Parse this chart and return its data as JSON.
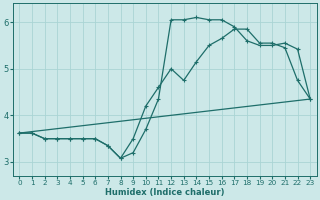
{
  "xlabel": "Humidex (Indice chaleur)",
  "xlim": [
    -0.5,
    23.5
  ],
  "ylim": [
    2.7,
    6.4
  ],
  "yticks": [
    3,
    4,
    5,
    6
  ],
  "xticks": [
    0,
    1,
    2,
    3,
    4,
    5,
    6,
    7,
    8,
    9,
    10,
    11,
    12,
    13,
    14,
    15,
    16,
    17,
    18,
    19,
    20,
    21,
    22,
    23
  ],
  "bg_color": "#cce8e8",
  "grid_color": "#aad4d4",
  "line_color": "#1e6e6a",
  "line1_x": [
    0,
    1,
    2,
    3,
    4,
    5,
    6,
    7,
    8,
    9,
    10,
    11,
    12,
    13,
    14,
    15,
    16,
    17,
    18,
    19,
    20,
    21,
    22,
    23
  ],
  "line1_y": [
    3.62,
    3.62,
    3.5,
    3.5,
    3.5,
    3.5,
    3.5,
    3.35,
    3.08,
    3.5,
    4.2,
    4.6,
    5.0,
    4.75,
    5.15,
    5.5,
    5.65,
    5.85,
    5.85,
    5.55,
    5.55,
    5.45,
    4.75,
    4.35
  ],
  "line2_x": [
    0,
    1,
    2,
    3,
    4,
    5,
    6,
    7,
    8,
    9,
    10,
    11,
    12,
    13,
    14,
    15,
    16,
    17,
    18,
    19,
    20,
    21,
    22,
    23
  ],
  "line2_y": [
    3.62,
    3.62,
    3.5,
    3.5,
    3.5,
    3.5,
    3.5,
    3.35,
    3.08,
    3.2,
    3.7,
    4.35,
    6.05,
    6.05,
    6.1,
    6.05,
    6.05,
    5.9,
    5.6,
    5.5,
    5.5,
    5.55,
    5.42,
    4.35
  ],
  "line3_x": [
    0,
    23
  ],
  "line3_y": [
    3.62,
    4.35
  ]
}
